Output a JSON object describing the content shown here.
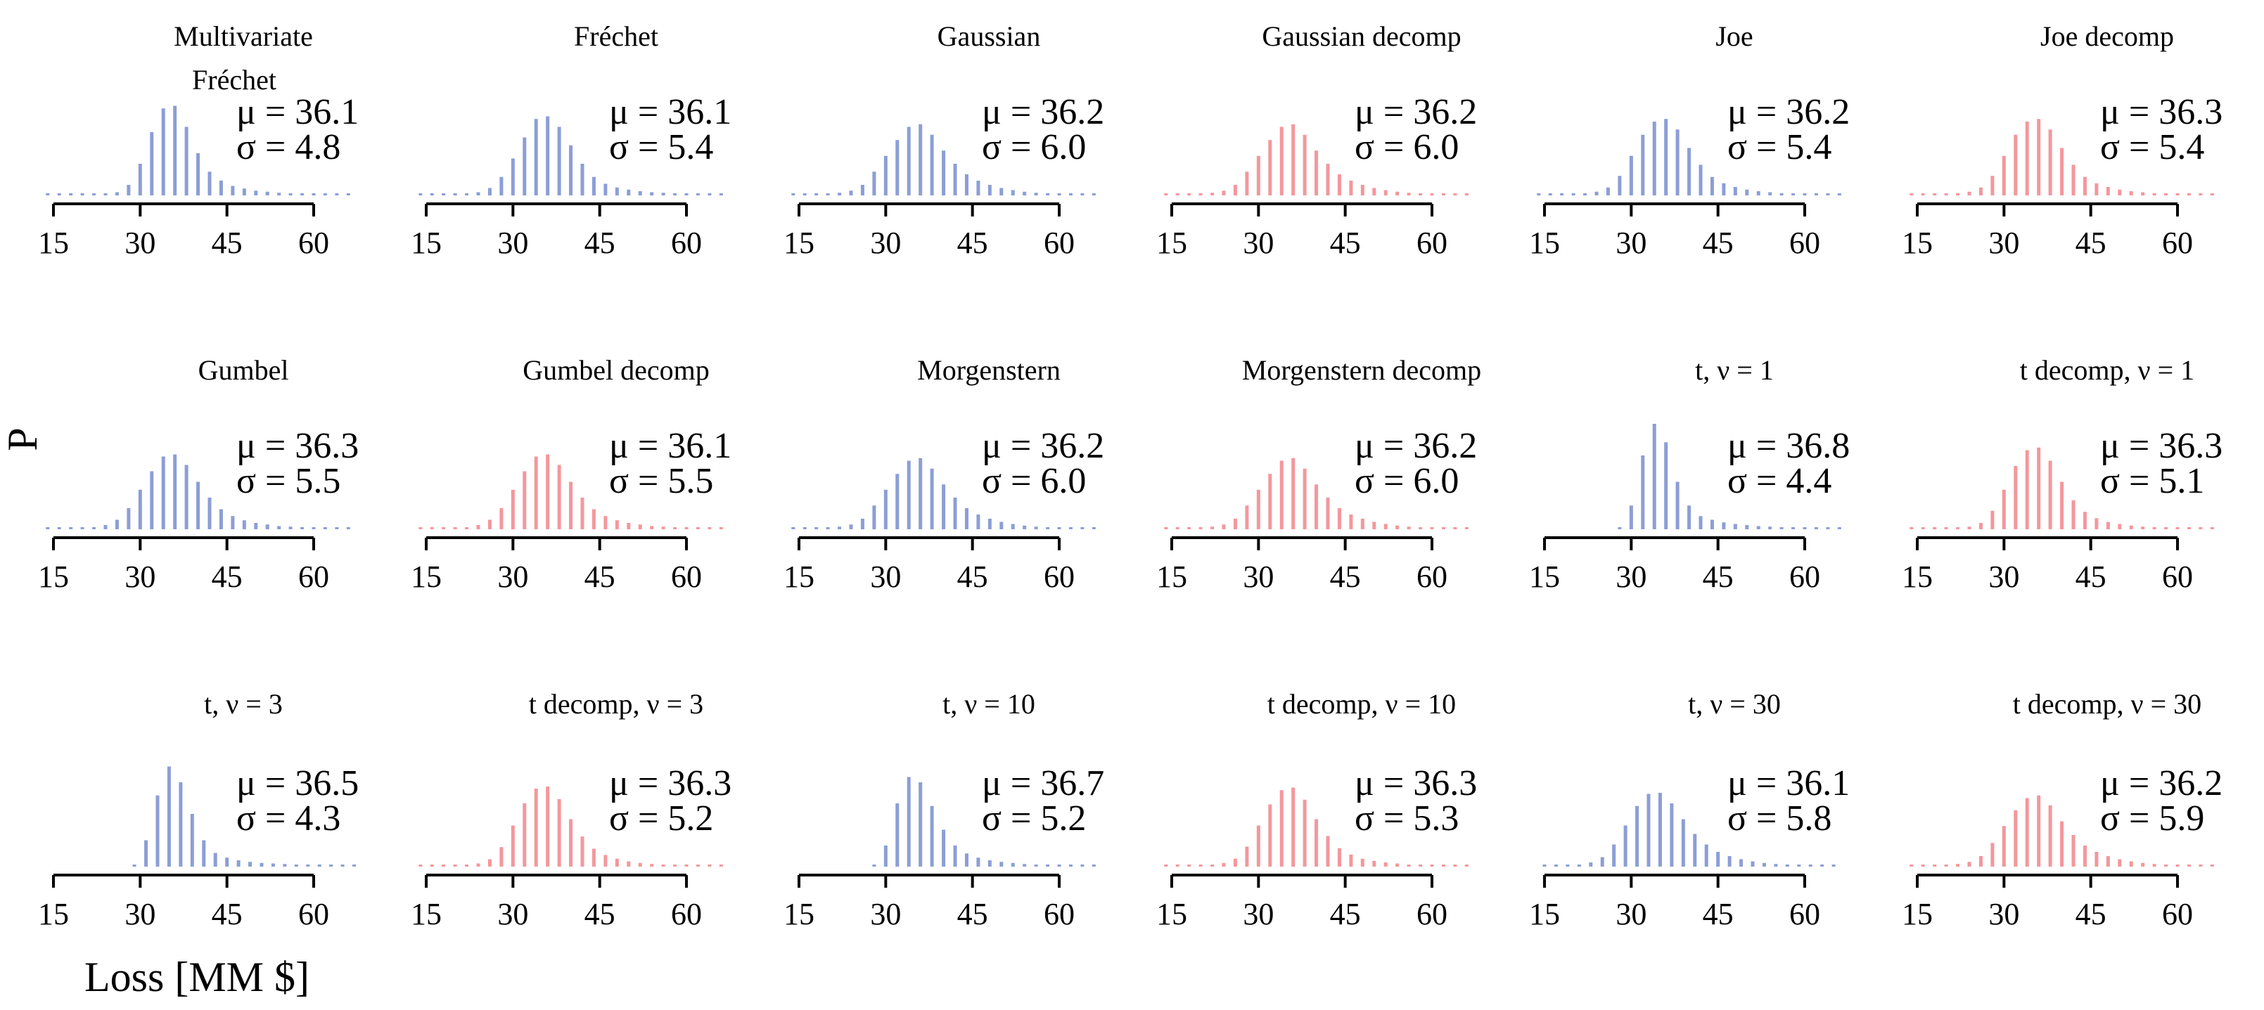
{
  "figure": {
    "ylabel": "P",
    "xlabel": "Loss [MM $]",
    "colors": {
      "copula": "#8c9ed6",
      "decomp": "#f4979c",
      "axis": "#000000"
    }
  },
  "chart_data": [
    {
      "type": "bar",
      "title": "Multivariate Fréchet",
      "series_kind": "copula",
      "mu": "36.1",
      "sigma": "4.8",
      "stats": {
        "mu_label": "μ = 36.1",
        "sigma_label": "σ = 4.8"
      },
      "xlim": [
        15,
        60
      ],
      "xticks": [
        15,
        30,
        45,
        60
      ],
      "x": [
        14,
        16,
        18,
        20,
        22,
        24,
        26,
        28,
        30,
        32,
        34,
        36,
        38,
        40,
        42,
        44,
        46,
        48,
        50,
        52,
        54,
        56,
        58,
        60,
        62,
        64,
        66
      ],
      "values": [
        0.002,
        0.002,
        0.002,
        0.002,
        0.003,
        0.003,
        0.006,
        0.02,
        0.06,
        0.12,
        0.165,
        0.17,
        0.13,
        0.08,
        0.045,
        0.028,
        0.018,
        0.013,
        0.009,
        0.007,
        0.005,
        0.004,
        0.003,
        0.002,
        0.002,
        0.002,
        0.002
      ]
    },
    {
      "type": "bar",
      "title": "Fréchet",
      "series_kind": "copula",
      "mu": "36.1",
      "sigma": "5.4",
      "stats": {
        "mu_label": "μ = 36.1",
        "sigma_label": "σ = 5.4"
      },
      "xlim": [
        15,
        60
      ],
      "xticks": [
        15,
        30,
        45,
        60
      ],
      "x": [
        14,
        16,
        18,
        20,
        22,
        24,
        26,
        28,
        30,
        32,
        34,
        36,
        38,
        40,
        42,
        44,
        46,
        48,
        50,
        52,
        54,
        56,
        58,
        60,
        62,
        64,
        66
      ],
      "values": [
        0.002,
        0.002,
        0.002,
        0.003,
        0.004,
        0.006,
        0.014,
        0.035,
        0.07,
        0.11,
        0.145,
        0.15,
        0.13,
        0.095,
        0.06,
        0.035,
        0.022,
        0.015,
        0.011,
        0.008,
        0.006,
        0.005,
        0.004,
        0.003,
        0.002,
        0.002,
        0.002
      ]
    },
    {
      "type": "bar",
      "title": "Gaussian",
      "series_kind": "copula",
      "mu": "36.2",
      "sigma": "6.0",
      "stats": {
        "mu_label": "μ = 36.2",
        "sigma_label": "σ = 6.0"
      },
      "xlim": [
        15,
        60
      ],
      "xticks": [
        15,
        30,
        45,
        60
      ],
      "x": [
        14,
        16,
        18,
        20,
        22,
        24,
        26,
        28,
        30,
        32,
        34,
        36,
        38,
        40,
        42,
        44,
        46,
        48,
        50,
        52,
        54,
        56,
        58,
        60,
        62,
        64,
        66
      ],
      "values": [
        0.002,
        0.002,
        0.002,
        0.003,
        0.005,
        0.009,
        0.02,
        0.045,
        0.075,
        0.105,
        0.13,
        0.135,
        0.115,
        0.085,
        0.06,
        0.04,
        0.028,
        0.02,
        0.014,
        0.01,
        0.007,
        0.005,
        0.004,
        0.003,
        0.002,
        0.002,
        0.002
      ]
    },
    {
      "type": "bar",
      "title": "Gaussian decomp",
      "series_kind": "decomp",
      "mu": "36.2",
      "sigma": "6.0",
      "stats": {
        "mu_label": "μ = 36.2",
        "sigma_label": "σ = 6.0"
      },
      "xlim": [
        15,
        60
      ],
      "xticks": [
        15,
        30,
        45,
        60
      ],
      "x": [
        14,
        16,
        18,
        20,
        22,
        24,
        26,
        28,
        30,
        32,
        34,
        36,
        38,
        40,
        42,
        44,
        46,
        48,
        50,
        52,
        54,
        56,
        58,
        60,
        62,
        64,
        66
      ],
      "values": [
        0.002,
        0.002,
        0.002,
        0.003,
        0.005,
        0.009,
        0.02,
        0.045,
        0.075,
        0.105,
        0.13,
        0.135,
        0.115,
        0.085,
        0.06,
        0.04,
        0.028,
        0.02,
        0.014,
        0.01,
        0.007,
        0.005,
        0.004,
        0.003,
        0.002,
        0.002,
        0.002
      ]
    },
    {
      "type": "bar",
      "title": "Joe",
      "series_kind": "copula",
      "mu": "36.2",
      "sigma": "5.4",
      "stats": {
        "mu_label": "μ = 36.2",
        "sigma_label": "σ = 5.4"
      },
      "xlim": [
        15,
        60
      ],
      "xticks": [
        15,
        30,
        45,
        60
      ],
      "x": [
        14,
        16,
        18,
        20,
        22,
        24,
        26,
        28,
        30,
        32,
        34,
        36,
        38,
        40,
        42,
        44,
        46,
        48,
        50,
        52,
        54,
        56,
        58,
        60,
        62,
        64,
        66
      ],
      "values": [
        0.002,
        0.002,
        0.002,
        0.003,
        0.004,
        0.007,
        0.015,
        0.037,
        0.075,
        0.115,
        0.14,
        0.145,
        0.125,
        0.09,
        0.058,
        0.035,
        0.023,
        0.016,
        0.011,
        0.008,
        0.006,
        0.004,
        0.003,
        0.003,
        0.002,
        0.002,
        0.002
      ]
    },
    {
      "type": "bar",
      "title": "Joe decomp",
      "series_kind": "decomp",
      "mu": "36.3",
      "sigma": "5.4",
      "stats": {
        "mu_label": "μ = 36.3",
        "sigma_label": "σ = 5.4"
      },
      "xlim": [
        15,
        60
      ],
      "xticks": [
        15,
        30,
        45,
        60
      ],
      "x": [
        14,
        16,
        18,
        20,
        22,
        24,
        26,
        28,
        30,
        32,
        34,
        36,
        38,
        40,
        42,
        44,
        46,
        48,
        50,
        52,
        54,
        56,
        58,
        60,
        62,
        64,
        66
      ],
      "values": [
        0.002,
        0.002,
        0.002,
        0.003,
        0.004,
        0.007,
        0.015,
        0.037,
        0.075,
        0.115,
        0.14,
        0.145,
        0.125,
        0.09,
        0.058,
        0.035,
        0.023,
        0.016,
        0.011,
        0.008,
        0.006,
        0.004,
        0.003,
        0.003,
        0.002,
        0.002,
        0.002
      ]
    },
    {
      "type": "bar",
      "title": "Gumbel",
      "series_kind": "copula",
      "mu": "36.3",
      "sigma": "5.5",
      "stats": {
        "mu_label": "μ = 36.3",
        "sigma_label": "σ = 5.5"
      },
      "xlim": [
        15,
        60
      ],
      "xticks": [
        15,
        30,
        45,
        60
      ],
      "x": [
        14,
        16,
        18,
        20,
        22,
        24,
        26,
        28,
        30,
        32,
        34,
        36,
        38,
        40,
        42,
        44,
        46,
        48,
        50,
        52,
        54,
        56,
        58,
        60,
        62,
        64,
        66
      ],
      "values": [
        0.002,
        0.002,
        0.002,
        0.003,
        0.004,
        0.008,
        0.018,
        0.04,
        0.075,
        0.11,
        0.138,
        0.142,
        0.122,
        0.09,
        0.06,
        0.038,
        0.025,
        0.017,
        0.012,
        0.009,
        0.006,
        0.005,
        0.004,
        0.003,
        0.002,
        0.002,
        0.002
      ]
    },
    {
      "type": "bar",
      "title": "Gumbel decomp",
      "series_kind": "decomp",
      "mu": "36.1",
      "sigma": "5.5",
      "stats": {
        "mu_label": "μ = 36.1",
        "sigma_label": "σ = 5.5"
      },
      "xlim": [
        15,
        60
      ],
      "xticks": [
        15,
        30,
        45,
        60
      ],
      "x": [
        14,
        16,
        18,
        20,
        22,
        24,
        26,
        28,
        30,
        32,
        34,
        36,
        38,
        40,
        42,
        44,
        46,
        48,
        50,
        52,
        54,
        56,
        58,
        60,
        62,
        64,
        66
      ],
      "values": [
        0.002,
        0.002,
        0.002,
        0.003,
        0.004,
        0.008,
        0.018,
        0.04,
        0.075,
        0.11,
        0.138,
        0.142,
        0.122,
        0.09,
        0.06,
        0.038,
        0.025,
        0.017,
        0.012,
        0.009,
        0.006,
        0.005,
        0.004,
        0.003,
        0.002,
        0.002,
        0.002
      ]
    },
    {
      "type": "bar",
      "title": "Morgenstern",
      "series_kind": "copula",
      "mu": "36.2",
      "sigma": "6.0",
      "stats": {
        "mu_label": "μ = 36.2",
        "sigma_label": "σ = 6.0"
      },
      "xlim": [
        15,
        60
      ],
      "xticks": [
        15,
        30,
        45,
        60
      ],
      "x": [
        14,
        16,
        18,
        20,
        22,
        24,
        26,
        28,
        30,
        32,
        34,
        36,
        38,
        40,
        42,
        44,
        46,
        48,
        50,
        52,
        54,
        56,
        58,
        60,
        62,
        64,
        66
      ],
      "values": [
        0.002,
        0.002,
        0.002,
        0.003,
        0.005,
        0.009,
        0.02,
        0.045,
        0.075,
        0.105,
        0.13,
        0.135,
        0.115,
        0.085,
        0.06,
        0.04,
        0.028,
        0.02,
        0.014,
        0.01,
        0.007,
        0.005,
        0.004,
        0.003,
        0.002,
        0.002,
        0.002
      ]
    },
    {
      "type": "bar",
      "title": "Morgenstern decomp",
      "series_kind": "decomp",
      "mu": "36.2",
      "sigma": "6.0",
      "stats": {
        "mu_label": "μ = 36.2",
        "sigma_label": "σ = 6.0"
      },
      "xlim": [
        15,
        60
      ],
      "xticks": [
        15,
        30,
        45,
        60
      ],
      "x": [
        14,
        16,
        18,
        20,
        22,
        24,
        26,
        28,
        30,
        32,
        34,
        36,
        38,
        40,
        42,
        44,
        46,
        48,
        50,
        52,
        54,
        56,
        58,
        60,
        62,
        64,
        66
      ],
      "values": [
        0.002,
        0.002,
        0.002,
        0.003,
        0.005,
        0.009,
        0.02,
        0.045,
        0.075,
        0.105,
        0.13,
        0.135,
        0.115,
        0.085,
        0.06,
        0.04,
        0.028,
        0.02,
        0.014,
        0.01,
        0.007,
        0.005,
        0.004,
        0.003,
        0.002,
        0.002,
        0.002
      ]
    },
    {
      "type": "bar",
      "title": "t, ν = 1",
      "series_kind": "copula",
      "mu": "36.8",
      "sigma": "4.4",
      "stats": {
        "mu_label": "μ = 36.8",
        "sigma_label": "σ = 4.4"
      },
      "xlim": [
        15,
        60
      ],
      "xticks": [
        15,
        30,
        45,
        60
      ],
      "x": [
        28,
        30,
        32,
        34,
        36,
        38,
        40,
        42,
        44,
        46,
        48,
        50,
        52,
        54,
        56,
        58,
        60,
        62,
        64,
        66
      ],
      "values": [
        0.002,
        0.045,
        0.14,
        0.2,
        0.165,
        0.09,
        0.045,
        0.025,
        0.018,
        0.013,
        0.01,
        0.008,
        0.006,
        0.005,
        0.004,
        0.003,
        0.003,
        0.002,
        0.002,
        0.002
      ]
    },
    {
      "type": "bar",
      "title": "t decomp, ν = 1",
      "series_kind": "decomp",
      "mu": "36.3",
      "sigma": "5.1",
      "stats": {
        "mu_label": "μ = 36.3",
        "sigma_label": "σ = 5.1"
      },
      "xlim": [
        15,
        60
      ],
      "xticks": [
        15,
        30,
        45,
        60
      ],
      "x": [
        14,
        16,
        18,
        20,
        22,
        24,
        26,
        28,
        30,
        32,
        34,
        36,
        38,
        40,
        42,
        44,
        46,
        48,
        50,
        52,
        54,
        56,
        58,
        60,
        62,
        64,
        66
      ],
      "values": [
        0.002,
        0.002,
        0.002,
        0.002,
        0.003,
        0.005,
        0.012,
        0.035,
        0.075,
        0.12,
        0.15,
        0.155,
        0.13,
        0.09,
        0.055,
        0.033,
        0.021,
        0.014,
        0.01,
        0.007,
        0.005,
        0.004,
        0.003,
        0.002,
        0.002,
        0.002,
        0.002
      ]
    },
    {
      "type": "bar",
      "title": "t, ν = 3",
      "series_kind": "copula",
      "mu": "36.5",
      "sigma": "4.3",
      "stats": {
        "mu_label": "μ = 36.5",
        "sigma_label": "σ = 4.3"
      },
      "xlim": [
        15,
        60
      ],
      "xticks": [
        15,
        30,
        45,
        60
      ],
      "x": [
        29,
        31,
        33,
        35,
        37,
        39,
        41,
        43,
        45,
        47,
        49,
        51,
        53,
        55,
        57,
        59,
        61,
        63,
        65,
        67
      ],
      "values": [
        0.004,
        0.05,
        0.135,
        0.19,
        0.16,
        0.1,
        0.05,
        0.026,
        0.017,
        0.012,
        0.009,
        0.007,
        0.006,
        0.005,
        0.004,
        0.003,
        0.003,
        0.002,
        0.002,
        0.002
      ]
    },
    {
      "type": "bar",
      "title": "t decomp, ν = 3",
      "series_kind": "decomp",
      "mu": "36.3",
      "sigma": "5.2",
      "stats": {
        "mu_label": "μ = 36.3",
        "sigma_label": "σ = 5.2"
      },
      "xlim": [
        15,
        60
      ],
      "xticks": [
        15,
        30,
        45,
        60
      ],
      "x": [
        14,
        16,
        18,
        20,
        22,
        24,
        26,
        28,
        30,
        32,
        34,
        36,
        38,
        40,
        42,
        44,
        46,
        48,
        50,
        52,
        54,
        56,
        58,
        60,
        62,
        64,
        66
      ],
      "values": [
        0.002,
        0.002,
        0.002,
        0.002,
        0.003,
        0.006,
        0.014,
        0.037,
        0.078,
        0.12,
        0.148,
        0.152,
        0.128,
        0.09,
        0.057,
        0.034,
        0.022,
        0.015,
        0.01,
        0.007,
        0.005,
        0.004,
        0.003,
        0.002,
        0.002,
        0.002,
        0.002
      ]
    },
    {
      "type": "bar",
      "title": "t, ν = 10",
      "series_kind": "copula",
      "mu": "36.7",
      "sigma": "5.2",
      "stats": {
        "mu_label": "μ = 36.7",
        "sigma_label": "σ = 5.2"
      },
      "xlim": [
        15,
        60
      ],
      "xticks": [
        15,
        30,
        45,
        60
      ],
      "x": [
        28,
        30,
        32,
        34,
        36,
        38,
        40,
        42,
        44,
        46,
        48,
        50,
        52,
        54,
        56,
        58,
        60,
        62,
        64,
        66
      ],
      "values": [
        0.003,
        0.04,
        0.12,
        0.17,
        0.16,
        0.115,
        0.07,
        0.04,
        0.025,
        0.017,
        0.012,
        0.009,
        0.007,
        0.005,
        0.004,
        0.003,
        0.003,
        0.002,
        0.002,
        0.002
      ]
    },
    {
      "type": "bar",
      "title": "t decomp, ν = 10",
      "series_kind": "decomp",
      "mu": "36.3",
      "sigma": "5.3",
      "stats": {
        "mu_label": "μ = 36.3",
        "sigma_label": "σ = 5.3"
      },
      "xlim": [
        15,
        60
      ],
      "xticks": [
        15,
        30,
        45,
        60
      ],
      "x": [
        14,
        16,
        18,
        20,
        22,
        24,
        26,
        28,
        30,
        32,
        34,
        36,
        38,
        40,
        42,
        44,
        46,
        48,
        50,
        52,
        54,
        56,
        58,
        60,
        62,
        64,
        66
      ],
      "values": [
        0.002,
        0.002,
        0.002,
        0.003,
        0.004,
        0.007,
        0.015,
        0.038,
        0.078,
        0.118,
        0.145,
        0.15,
        0.127,
        0.09,
        0.058,
        0.035,
        0.023,
        0.015,
        0.011,
        0.008,
        0.006,
        0.004,
        0.003,
        0.003,
        0.002,
        0.002,
        0.002
      ]
    },
    {
      "type": "bar",
      "title": "t, ν = 30",
      "series_kind": "copula",
      "mu": "36.1",
      "sigma": "5.8",
      "stats": {
        "mu_label": "μ = 36.1",
        "sigma_label": "σ = 5.8"
      },
      "xlim": [
        15,
        60
      ],
      "xticks": [
        15,
        30,
        45,
        60
      ],
      "x": [
        15,
        17,
        19,
        21,
        23,
        25,
        27,
        29,
        31,
        33,
        35,
        37,
        39,
        41,
        43,
        45,
        47,
        49,
        51,
        53,
        55,
        57,
        59,
        61,
        63,
        65
      ],
      "values": [
        0.002,
        0.002,
        0.003,
        0.004,
        0.008,
        0.018,
        0.042,
        0.078,
        0.115,
        0.138,
        0.14,
        0.12,
        0.09,
        0.062,
        0.042,
        0.028,
        0.02,
        0.014,
        0.01,
        0.007,
        0.005,
        0.004,
        0.003,
        0.002,
        0.002,
        0.002
      ]
    },
    {
      "type": "bar",
      "title": "t decomp, ν = 30",
      "series_kind": "decomp",
      "mu": "36.2",
      "sigma": "5.9",
      "stats": {
        "mu_label": "μ = 36.2",
        "sigma_label": "σ = 5.9"
      },
      "xlim": [
        15,
        60
      ],
      "xticks": [
        15,
        30,
        45,
        60
      ],
      "x": [
        14,
        16,
        18,
        20,
        22,
        24,
        26,
        28,
        30,
        32,
        34,
        36,
        38,
        40,
        42,
        44,
        46,
        48,
        50,
        52,
        54,
        56,
        58,
        60,
        62,
        64,
        66
      ],
      "values": [
        0.002,
        0.002,
        0.002,
        0.003,
        0.005,
        0.009,
        0.02,
        0.045,
        0.077,
        0.107,
        0.13,
        0.135,
        0.116,
        0.086,
        0.06,
        0.04,
        0.028,
        0.02,
        0.014,
        0.01,
        0.007,
        0.005,
        0.004,
        0.003,
        0.002,
        0.002,
        0.002
      ]
    }
  ]
}
